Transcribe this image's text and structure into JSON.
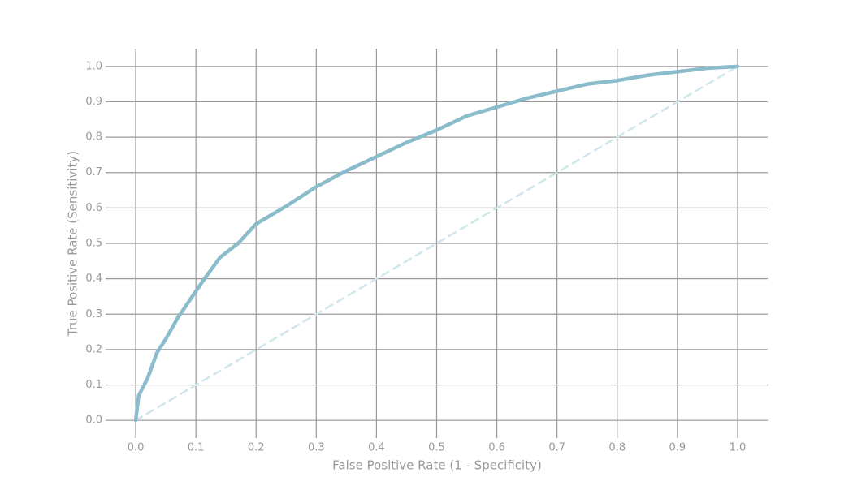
{
  "chart_data": {
    "type": "line",
    "x_label": "False Positive Rate (1 - Specificity)",
    "y_label": "True Positive Rate (Sensitivity)",
    "xlim": [
      -0.05,
      1.05
    ],
    "ylim": [
      -0.05,
      1.05
    ],
    "xticks": [
      {
        "value": 0,
        "label": "0.0"
      },
      0.1,
      0.2,
      0.3,
      0.4,
      0.5,
      0.6,
      0.7,
      0.8,
      0.9,
      {
        "value": 1,
        "label": "1.0"
      }
    ],
    "yticks": [
      {
        "value": 0,
        "label": "0.0"
      },
      0.1,
      0.2,
      0.3,
      0.4,
      0.5,
      0.6,
      0.7,
      0.8,
      0.9,
      {
        "value": 1,
        "label": "1.0"
      }
    ],
    "grid": true,
    "series": [
      {
        "color": "#8bbccc",
        "dashed": false,
        "x": [
          0,
          0.005,
          0.02,
          0.035,
          0.05,
          0.07,
          0.09,
          0.11,
          0.14,
          0.17,
          0.2,
          0.25,
          0.3,
          0.35,
          0.4,
          0.45,
          0.5,
          0.55,
          0.6,
          0.65,
          0.7,
          0.75,
          0.8,
          0.85,
          0.9,
          0.95,
          1
        ],
        "values": [
          0,
          0.07,
          0.12,
          0.19,
          0.23,
          0.29,
          0.34,
          0.39,
          0.46,
          0.5,
          0.555,
          0.605,
          0.66,
          0.705,
          0.745,
          0.785,
          0.82,
          0.86,
          0.885,
          0.91,
          0.93,
          0.95,
          0.96,
          0.975,
          0.985,
          0.995,
          1
        ]
      },
      {
        "color": "#cfe6ec",
        "dashed": true,
        "x": [
          0,
          1
        ],
        "values": [
          0,
          1
        ]
      }
    ]
  }
}
